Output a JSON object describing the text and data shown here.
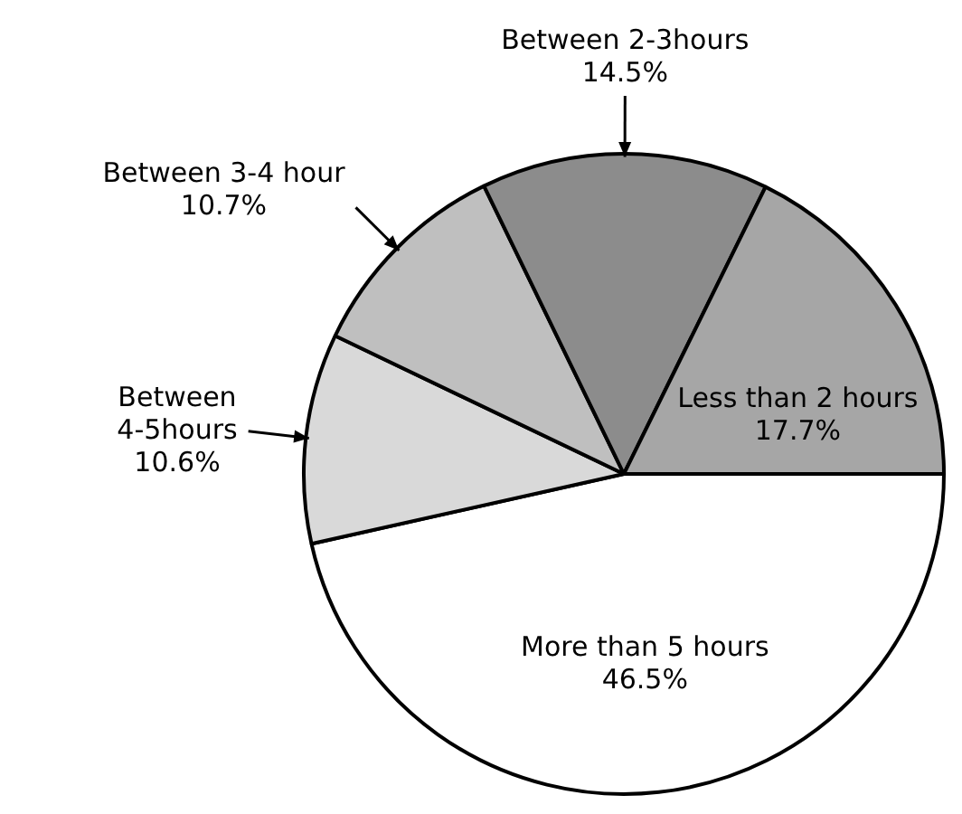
{
  "chart_data": {
    "type": "pie",
    "categories": [
      "More than 5 hours",
      "Between 4-5hours",
      "Between 3-4 hour",
      "Between 2-3hours",
      "Less than 2 hours"
    ],
    "values": [
      46.5,
      10.6,
      10.7,
      14.5,
      17.7
    ],
    "value_labels": [
      "46.5%",
      "10.6%",
      "10.7%",
      "14.5%",
      "17.7%"
    ],
    "colors": [
      "#ffffff",
      "#d9d9d9",
      "#bfbfbf",
      "#8c8c8c",
      "#a6a6a6"
    ],
    "legend": false
  }
}
